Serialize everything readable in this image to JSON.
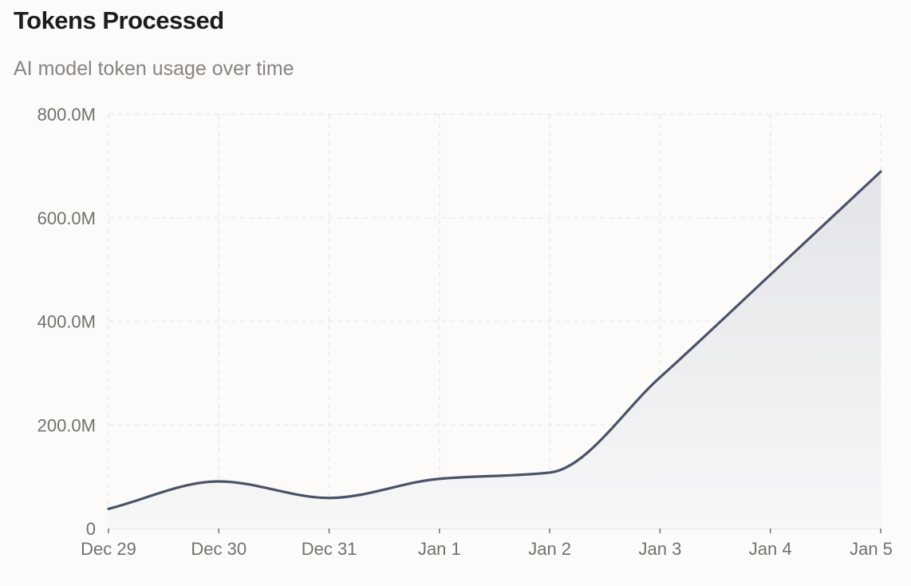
{
  "header": {
    "title": "Tokens Processed",
    "subtitle": "AI model token usage over time"
  },
  "colors": {
    "line": "#4a5268",
    "area_top": "#e3e4e8",
    "area_bottom": "#f7f7f8",
    "grid": "#ebe9e6",
    "text_muted": "#75706b"
  },
  "chart_data": {
    "type": "area",
    "title": "Tokens Processed",
    "subtitle": "AI model token usage over time",
    "xlabel": "",
    "ylabel": "",
    "categories": [
      "Dec 29",
      "Dec 30",
      "Dec 31",
      "Jan 1",
      "Jan 2",
      "Jan 3",
      "Jan 4",
      "Jan 5"
    ],
    "series": [
      {
        "name": "Tokens Processed",
        "values": [
          38000000,
          91000000,
          59000000,
          96000000,
          108000000,
          292000000,
          490000000,
          689000000
        ]
      }
    ],
    "y_ticks": [
      0,
      200000000,
      400000000,
      600000000,
      800000000
    ],
    "y_tick_labels": [
      "0",
      "200.0M",
      "400.0M",
      "600.0M",
      "800.0M"
    ],
    "ylim": [
      0,
      800000000
    ],
    "grid": true,
    "legend": "none"
  }
}
